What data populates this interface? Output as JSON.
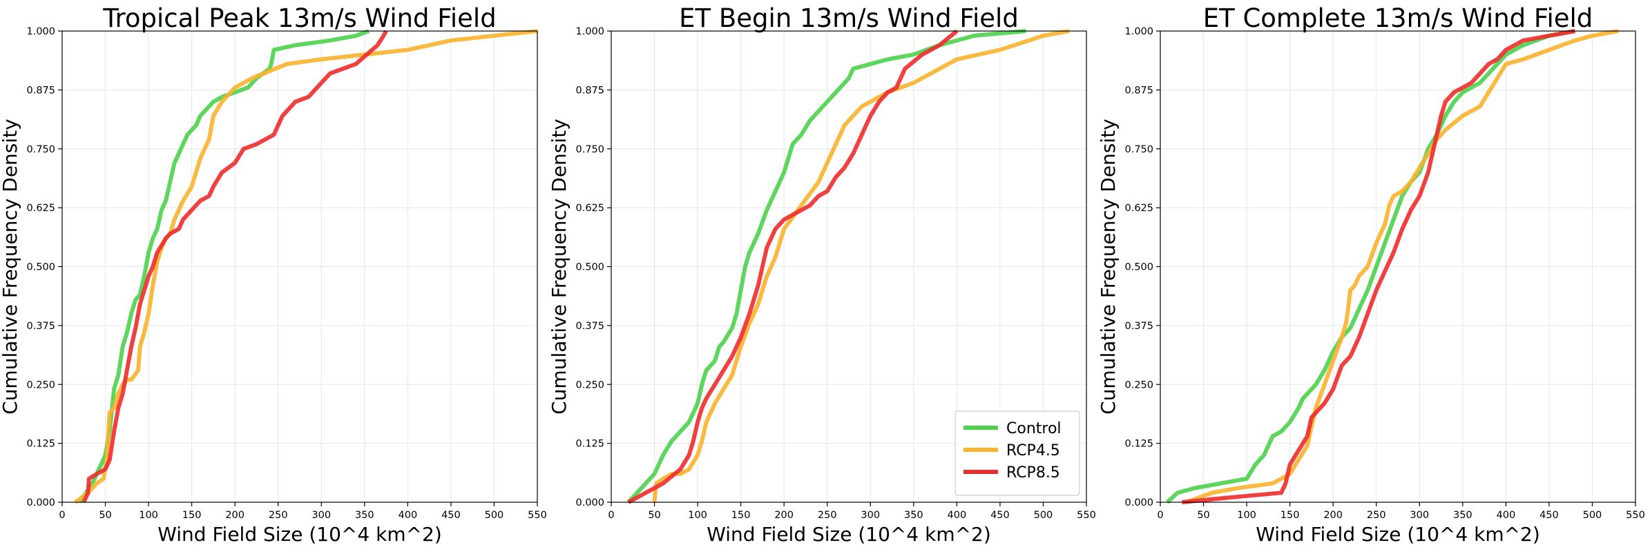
{
  "figure": {
    "background": "#ffffff"
  },
  "chart_data": [
    {
      "type": "line",
      "title": "Tropical Peak 13m/s Wind Field",
      "xlabel": "Wind Field Size (10^4 km^2)",
      "ylabel": "Cumulative Frequency Density",
      "xlim": [
        0,
        550
      ],
      "ylim": [
        0,
        1
      ],
      "xticks": [
        0,
        50,
        100,
        150,
        200,
        250,
        300,
        350,
        400,
        450,
        500,
        550
      ],
      "yticks": [
        "0.000",
        "0.125",
        "0.250",
        "0.375",
        "0.500",
        "0.625",
        "0.750",
        "0.875",
        "1.000"
      ],
      "grid": true,
      "legend": false,
      "series": [
        {
          "name": "Control",
          "color": "#4dd14d",
          "x": [
            20,
            35,
            45,
            50,
            55,
            60,
            65,
            70,
            75,
            80,
            85,
            90,
            95,
            100,
            105,
            110,
            115,
            120,
            125,
            130,
            135,
            140,
            145,
            150,
            155,
            160,
            165,
            170,
            175,
            185,
            200,
            215,
            225,
            240,
            242,
            245,
            270,
            310,
            340,
            355
          ],
          "y": [
            0.0,
            0.04,
            0.08,
            0.1,
            0.15,
            0.24,
            0.27,
            0.33,
            0.36,
            0.4,
            0.43,
            0.44,
            0.48,
            0.53,
            0.56,
            0.58,
            0.62,
            0.64,
            0.68,
            0.72,
            0.74,
            0.76,
            0.78,
            0.79,
            0.8,
            0.82,
            0.83,
            0.84,
            0.85,
            0.86,
            0.87,
            0.88,
            0.9,
            0.92,
            0.93,
            0.96,
            0.97,
            0.98,
            0.99,
            1.0
          ]
        },
        {
          "name": "RCP4.5",
          "color": "#f9b32d",
          "x": [
            15,
            30,
            40,
            48,
            52,
            55,
            60,
            65,
            70,
            75,
            80,
            88,
            90,
            95,
            100,
            105,
            110,
            115,
            120,
            125,
            130,
            135,
            140,
            150,
            160,
            170,
            175,
            185,
            200,
            220,
            260,
            300,
            350,
            400,
            450,
            500,
            550
          ],
          "y": [
            0.0,
            0.02,
            0.04,
            0.05,
            0.1,
            0.19,
            0.2,
            0.23,
            0.25,
            0.26,
            0.26,
            0.28,
            0.33,
            0.36,
            0.4,
            0.46,
            0.51,
            0.54,
            0.56,
            0.57,
            0.6,
            0.62,
            0.64,
            0.67,
            0.73,
            0.77,
            0.82,
            0.85,
            0.88,
            0.9,
            0.93,
            0.94,
            0.95,
            0.96,
            0.98,
            0.99,
            1.0
          ]
        },
        {
          "name": "RCP8.5",
          "color": "#ee2b2b",
          "x": [
            25,
            30,
            31,
            40,
            50,
            55,
            60,
            65,
            70,
            75,
            80,
            85,
            90,
            100,
            105,
            110,
            120,
            125,
            135,
            140,
            150,
            160,
            170,
            175,
            185,
            200,
            210,
            225,
            245,
            255,
            270,
            285,
            295,
            300,
            310,
            340,
            365,
            372,
            375
          ],
          "y": [
            0.0,
            0.02,
            0.05,
            0.06,
            0.07,
            0.09,
            0.15,
            0.2,
            0.23,
            0.28,
            0.33,
            0.37,
            0.42,
            0.48,
            0.5,
            0.53,
            0.56,
            0.57,
            0.58,
            0.6,
            0.62,
            0.64,
            0.65,
            0.67,
            0.7,
            0.72,
            0.75,
            0.76,
            0.78,
            0.82,
            0.85,
            0.86,
            0.88,
            0.89,
            0.91,
            0.93,
            0.97,
            0.99,
            1.0
          ]
        }
      ]
    },
    {
      "type": "line",
      "title": "ET Begin 13m/s Wind Field",
      "xlabel": "Wind Field Size (10^4 km^2)",
      "ylabel": "Cumulative Frequency Density",
      "xlim": [
        0,
        550
      ],
      "ylim": [
        0,
        1
      ],
      "xticks": [
        0,
        50,
        100,
        150,
        200,
        250,
        300,
        350,
        400,
        450,
        500,
        550
      ],
      "yticks": [
        "0.000",
        "0.125",
        "0.250",
        "0.375",
        "0.500",
        "0.625",
        "0.750",
        "0.875",
        "1.000"
      ],
      "grid": true,
      "legend": true,
      "legend_loc": "lower right",
      "series": [
        {
          "name": "Control",
          "color": "#4dd14d",
          "x": [
            20,
            30,
            40,
            50,
            55,
            60,
            70,
            80,
            90,
            100,
            105,
            110,
            120,
            125,
            130,
            140,
            145,
            150,
            155,
            160,
            170,
            180,
            190,
            200,
            210,
            220,
            230,
            240,
            250,
            260,
            265,
            275,
            280,
            300,
            320,
            350,
            380,
            420,
            480
          ],
          "y": [
            0.0,
            0.02,
            0.04,
            0.06,
            0.08,
            0.1,
            0.13,
            0.15,
            0.17,
            0.21,
            0.25,
            0.28,
            0.3,
            0.33,
            0.34,
            0.37,
            0.4,
            0.45,
            0.5,
            0.53,
            0.57,
            0.62,
            0.66,
            0.7,
            0.76,
            0.78,
            0.81,
            0.83,
            0.85,
            0.87,
            0.88,
            0.9,
            0.92,
            0.93,
            0.94,
            0.95,
            0.97,
            0.99,
            1.0
          ]
        },
        {
          "name": "RCP4.5",
          "color": "#f9b32d",
          "x": [
            50,
            52,
            60,
            70,
            80,
            90,
            100,
            105,
            110,
            120,
            130,
            140,
            150,
            160,
            170,
            180,
            190,
            200,
            220,
            240,
            250,
            260,
            270,
            280,
            290,
            300,
            320,
            350,
            380,
            400,
            450,
            500,
            530
          ],
          "y": [
            0.0,
            0.04,
            0.05,
            0.06,
            0.06,
            0.07,
            0.1,
            0.13,
            0.17,
            0.21,
            0.24,
            0.27,
            0.33,
            0.38,
            0.42,
            0.48,
            0.52,
            0.58,
            0.63,
            0.68,
            0.72,
            0.76,
            0.8,
            0.82,
            0.84,
            0.85,
            0.87,
            0.89,
            0.92,
            0.94,
            0.96,
            0.99,
            1.0
          ]
        },
        {
          "name": "RCP8.5",
          "color": "#ee2b2b",
          "x": [
            20,
            40,
            60,
            80,
            90,
            95,
            100,
            105,
            110,
            120,
            130,
            140,
            150,
            160,
            170,
            175,
            180,
            185,
            190,
            200,
            210,
            230,
            240,
            250,
            260,
            270,
            280,
            290,
            300,
            310,
            320,
            330,
            340,
            360,
            380,
            400
          ],
          "y": [
            0.0,
            0.02,
            0.04,
            0.07,
            0.1,
            0.13,
            0.17,
            0.2,
            0.22,
            0.25,
            0.28,
            0.31,
            0.35,
            0.4,
            0.46,
            0.5,
            0.54,
            0.56,
            0.58,
            0.6,
            0.61,
            0.63,
            0.65,
            0.66,
            0.69,
            0.71,
            0.74,
            0.78,
            0.82,
            0.85,
            0.87,
            0.88,
            0.92,
            0.95,
            0.97,
            1.0
          ]
        }
      ]
    },
    {
      "type": "line",
      "title": "ET Complete 13m/s Wind Field",
      "xlabel": "Wind Field Size (10^4 km^2)",
      "ylabel": "Cumulative Frequency Density",
      "xlim": [
        0,
        550
      ],
      "ylim": [
        0,
        1
      ],
      "xticks": [
        0,
        50,
        100,
        150,
        200,
        250,
        300,
        350,
        400,
        450,
        500,
        550
      ],
      "yticks": [
        "0.000",
        "0.125",
        "0.250",
        "0.375",
        "0.500",
        "0.625",
        "0.750",
        "0.875",
        "1.000"
      ],
      "grid": true,
      "legend": false,
      "series": [
        {
          "name": "Control",
          "color": "#4dd14d",
          "x": [
            8,
            20,
            40,
            70,
            100,
            110,
            120,
            125,
            130,
            140,
            150,
            160,
            165,
            170,
            180,
            190,
            200,
            210,
            220,
            230,
            240,
            250,
            260,
            270,
            280,
            290,
            300,
            310,
            320,
            330,
            340,
            350,
            360,
            370,
            380,
            390,
            400,
            420,
            450,
            480
          ],
          "y": [
            0.0,
            0.02,
            0.03,
            0.04,
            0.05,
            0.08,
            0.1,
            0.12,
            0.14,
            0.15,
            0.17,
            0.2,
            0.22,
            0.23,
            0.25,
            0.28,
            0.32,
            0.35,
            0.37,
            0.41,
            0.45,
            0.5,
            0.55,
            0.6,
            0.65,
            0.68,
            0.7,
            0.75,
            0.78,
            0.82,
            0.85,
            0.87,
            0.88,
            0.89,
            0.91,
            0.93,
            0.95,
            0.97,
            0.99,
            1.0
          ]
        },
        {
          "name": "RCP4.5",
          "color": "#f9b32d",
          "x": [
            30,
            60,
            90,
            130,
            150,
            160,
            170,
            175,
            180,
            190,
            200,
            210,
            215,
            218,
            220,
            225,
            230,
            240,
            250,
            260,
            265,
            270,
            280,
            290,
            300,
            310,
            320,
            330,
            350,
            370,
            380,
            390,
            400,
            420,
            450,
            480,
            500,
            530
          ],
          "y": [
            0.0,
            0.02,
            0.03,
            0.04,
            0.06,
            0.09,
            0.12,
            0.16,
            0.2,
            0.25,
            0.3,
            0.35,
            0.38,
            0.42,
            0.45,
            0.46,
            0.48,
            0.5,
            0.55,
            0.59,
            0.63,
            0.65,
            0.66,
            0.68,
            0.71,
            0.74,
            0.77,
            0.79,
            0.82,
            0.84,
            0.87,
            0.9,
            0.93,
            0.94,
            0.96,
            0.98,
            0.99,
            1.0
          ]
        },
        {
          "name": "RCP8.5",
          "color": "#ee2b2b",
          "x": [
            25,
            80,
            140,
            145,
            150,
            160,
            170,
            175,
            180,
            190,
            200,
            210,
            220,
            230,
            240,
            250,
            260,
            270,
            280,
            290,
            300,
            310,
            320,
            325,
            330,
            340,
            350,
            360,
            370,
            380,
            390,
            400,
            420,
            450,
            480
          ],
          "y": [
            0.0,
            0.01,
            0.02,
            0.04,
            0.08,
            0.11,
            0.14,
            0.18,
            0.19,
            0.21,
            0.24,
            0.29,
            0.31,
            0.35,
            0.4,
            0.45,
            0.49,
            0.53,
            0.58,
            0.62,
            0.65,
            0.7,
            0.78,
            0.82,
            0.85,
            0.87,
            0.88,
            0.89,
            0.91,
            0.93,
            0.94,
            0.96,
            0.98,
            0.99,
            1.0
          ]
        }
      ]
    }
  ]
}
